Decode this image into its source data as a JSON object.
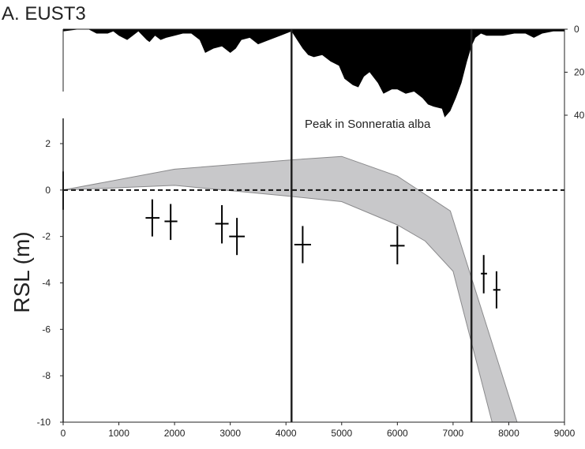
{
  "chart_data": {
    "type": "line",
    "title": "A. EUST3",
    "xlabel": "",
    "ylabel": "RSL (m)",
    "xlim": [
      0,
      9000
    ],
    "ylim": [
      -10,
      2
    ],
    "x_ticks": [
      "0",
      "1000",
      "2000",
      "3000",
      "4000",
      "5000",
      "6000",
      "7000",
      "8000",
      "9000"
    ],
    "y_ticks": [
      "2",
      "0",
      "-2",
      "-4",
      "-6",
      "-8",
      "-10"
    ],
    "zero_line": {
      "y": 0,
      "style": "dashed"
    },
    "envelope": {
      "upper": [
        [
          0,
          0
        ],
        [
          2000,
          0.9
        ],
        [
          4100,
          1.3
        ],
        [
          5000,
          1.45
        ],
        [
          6000,
          0.6
        ],
        [
          6950,
          -0.9
        ],
        [
          8150,
          -10
        ]
      ],
      "lower": [
        [
          0,
          0
        ],
        [
          2000,
          0.2
        ],
        [
          4000,
          -0.25
        ],
        [
          5000,
          -0.5
        ],
        [
          6000,
          -1.5
        ],
        [
          6500,
          -2.2
        ],
        [
          7000,
          -3.5
        ],
        [
          7700,
          -10
        ]
      ],
      "color": "#c8c8ca"
    },
    "index_points": [
      {
        "x": 1600,
        "y": -1.2,
        "y_range": [
          -2.0,
          -0.4
        ],
        "x_range": [
          1480,
          1730
        ]
      },
      {
        "x": 1930,
        "y": -1.35,
        "y_range": [
          -2.15,
          -0.6
        ],
        "x_range": [
          1820,
          2050
        ]
      },
      {
        "x": 2850,
        "y": -1.45,
        "y_range": [
          -2.3,
          -0.65
        ],
        "x_range": [
          2730,
          2970
        ]
      },
      {
        "x": 3120,
        "y": -2.0,
        "y_range": [
          -2.8,
          -1.2
        ],
        "x_range": [
          2980,
          3260
        ]
      },
      {
        "x": 4300,
        "y": -2.35,
        "y_range": [
          -3.15,
          -1.55
        ],
        "x_range": [
          4150,
          4450
        ]
      },
      {
        "x": 6000,
        "y": -2.4,
        "y_range": [
          -3.2,
          -1.55
        ],
        "x_range": [
          5870,
          6130
        ]
      },
      {
        "x": 7550,
        "y": -3.6,
        "y_range": [
          -4.45,
          -2.8
        ],
        "x_range": [
          7500,
          7610
        ]
      },
      {
        "x": 7780,
        "y": -4.3,
        "y_range": [
          -5.1,
          -3.5
        ],
        "x_range": [
          7720,
          7850
        ]
      }
    ],
    "origin_bar": {
      "x": 0,
      "y_range": [
        -0.85,
        0.8
      ]
    },
    "vertical_lines": [
      4100,
      7330
    ],
    "annotation": "Peak in Sonneratia alba",
    "pollen": {
      "right_ticks": [
        "0",
        "20",
        "40"
      ],
      "max": 40,
      "profile": [
        [
          0,
          1
        ],
        [
          300,
          0
        ],
        [
          450,
          0
        ],
        [
          600,
          2
        ],
        [
          800,
          2
        ],
        [
          900,
          1
        ],
        [
          1000,
          3
        ],
        [
          1150,
          5
        ],
        [
          1250,
          3
        ],
        [
          1350,
          1
        ],
        [
          1500,
          5
        ],
        [
          1550,
          6
        ],
        [
          1650,
          3
        ],
        [
          1750,
          5
        ],
        [
          1850,
          4
        ],
        [
          2000,
          3
        ],
        [
          2150,
          2
        ],
        [
          2300,
          2
        ],
        [
          2450,
          5
        ],
        [
          2550,
          11
        ],
        [
          2700,
          9
        ],
        [
          2850,
          8
        ],
        [
          3000,
          11
        ],
        [
          3100,
          9
        ],
        [
          3200,
          5
        ],
        [
          3350,
          4
        ],
        [
          3500,
          7
        ],
        [
          3700,
          5
        ],
        [
          3900,
          3
        ],
        [
          4000,
          2
        ],
        [
          4100,
          1
        ],
        [
          4200,
          5
        ],
        [
          4300,
          9
        ],
        [
          4400,
          12
        ],
        [
          4500,
          13
        ],
        [
          4650,
          12
        ],
        [
          4800,
          15
        ],
        [
          4950,
          17
        ],
        [
          5050,
          23
        ],
        [
          5200,
          26
        ],
        [
          5300,
          27
        ],
        [
          5400,
          22
        ],
        [
          5500,
          20
        ],
        [
          5650,
          25
        ],
        [
          5750,
          30
        ],
        [
          5900,
          28
        ],
        [
          6000,
          28
        ],
        [
          6150,
          30
        ],
        [
          6300,
          29
        ],
        [
          6450,
          32
        ],
        [
          6550,
          35
        ],
        [
          6650,
          36
        ],
        [
          6800,
          37
        ],
        [
          6850,
          41
        ],
        [
          6950,
          38
        ],
        [
          7050,
          32
        ],
        [
          7150,
          25
        ],
        [
          7250,
          15
        ],
        [
          7330,
          8
        ],
        [
          7400,
          4
        ],
        [
          7500,
          2
        ],
        [
          7600,
          3
        ],
        [
          7700,
          3
        ],
        [
          7900,
          3
        ],
        [
          8100,
          2
        ],
        [
          8300,
          2
        ],
        [
          8450,
          4
        ],
        [
          8600,
          2
        ],
        [
          8800,
          1
        ],
        [
          9000,
          1
        ]
      ]
    }
  }
}
